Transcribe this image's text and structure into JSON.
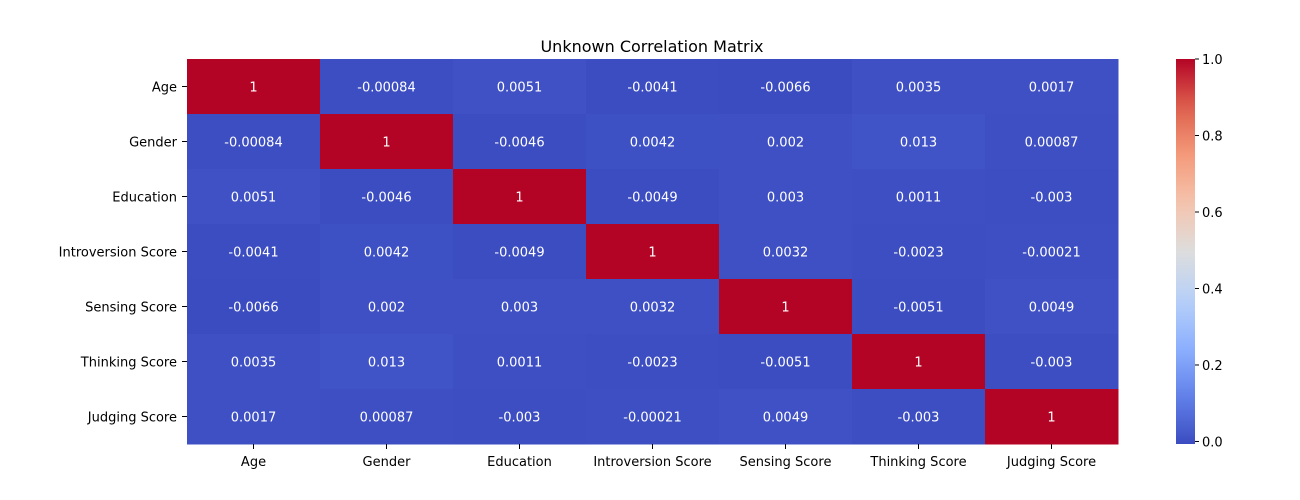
{
  "chart_data": {
    "type": "heatmap",
    "title": "Unknown Correlation Matrix",
    "xlabel": "",
    "ylabel": "",
    "row_labels": [
      "Age",
      "Gender",
      "Education",
      "Introversion Score",
      "Sensing Score",
      "Thinking Score",
      "Judging Score"
    ],
    "col_labels": [
      "Age",
      "Gender",
      "Education",
      "Introversion Score",
      "Sensing Score",
      "Thinking Score",
      "Judging Score"
    ],
    "values": [
      [
        1,
        -0.00084,
        0.0051,
        -0.0041,
        -0.0066,
        0.0035,
        0.0017
      ],
      [
        -0.00084,
        1,
        -0.0046,
        0.0042,
        0.002,
        0.013,
        0.00087
      ],
      [
        0.0051,
        -0.0046,
        1,
        -0.0049,
        0.003,
        0.0011,
        -0.003
      ],
      [
        -0.0041,
        0.0042,
        -0.0049,
        1,
        0.0032,
        -0.0023,
        -0.00021
      ],
      [
        -0.0066,
        0.002,
        0.003,
        0.0032,
        1,
        -0.0051,
        0.0049
      ],
      [
        0.0035,
        0.013,
        0.0011,
        -0.0023,
        -0.0051,
        1,
        -0.003
      ],
      [
        0.0017,
        0.00087,
        -0.003,
        -0.00021,
        0.0049,
        -0.003,
        1
      ]
    ],
    "annotations": [
      [
        "1",
        "-0.00084",
        "0.0051",
        "-0.0041",
        "-0.0066",
        "0.0035",
        "0.0017"
      ],
      [
        "-0.00084",
        "1",
        "-0.0046",
        "0.0042",
        "0.002",
        "0.013",
        "0.00087"
      ],
      [
        "0.0051",
        "-0.0046",
        "1",
        "-0.0049",
        "0.003",
        "0.0011",
        "-0.003"
      ],
      [
        "-0.0041",
        "0.0042",
        "-0.0049",
        "1",
        "0.0032",
        "-0.0023",
        "-0.00021"
      ],
      [
        "-0.0066",
        "0.002",
        "0.003",
        "0.0032",
        "1",
        "-0.0051",
        "0.0049"
      ],
      [
        "0.0035",
        "0.013",
        "0.0011",
        "-0.0023",
        "-0.0051",
        "1",
        "-0.003"
      ],
      [
        "0.0017",
        "0.00087",
        "-0.003",
        "-0.00021",
        "0.0049",
        "-0.003",
        "1"
      ]
    ],
    "colormap": "coolwarm",
    "vmin": -0.0066,
    "vmax": 1,
    "colorbar": {
      "ticks": [
        0.0,
        0.2,
        0.4,
        0.6,
        0.8,
        1.0
      ],
      "tick_labels": [
        "0.0",
        "0.2",
        "0.4",
        "0.6",
        "0.8",
        "1.0"
      ],
      "placement": "right"
    },
    "grid": false
  }
}
